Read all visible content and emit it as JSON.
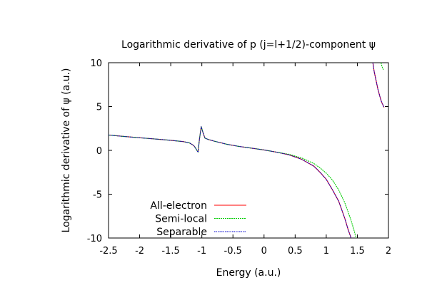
{
  "chart_data": {
    "type": "line",
    "title": "Logarithmic derivative of p (j=l+1/2)-component ψ",
    "xlabel": "Energy (a.u.)",
    "ylabel": "Logarithmic derivative of ψ (a.u.)",
    "xlim": [
      -2.5,
      2
    ],
    "ylim": [
      -10,
      10
    ],
    "x_ticks": [
      "-2.5",
      "-2",
      "-1.5",
      "-1",
      "-0.5",
      "0",
      "0.5",
      "1",
      "1.5",
      "2"
    ],
    "y_ticks": [
      "10",
      "5",
      "0",
      "-5",
      "-10"
    ],
    "grid": false,
    "legend_position": "bottom-left",
    "series": [
      {
        "name": "All-electron",
        "color": "#ff0000",
        "segments": [
          [
            [
              -2.5,
              1.75
            ],
            [
              -2.3,
              1.62
            ],
            [
              -2.1,
              1.5
            ],
            [
              -1.9,
              1.38
            ],
            [
              -1.7,
              1.27
            ],
            [
              -1.5,
              1.15
            ],
            [
              -1.3,
              1.0
            ],
            [
              -1.2,
              0.85
            ],
            [
              -1.13,
              0.55
            ],
            [
              -1.1,
              0.25
            ],
            [
              -1.08,
              0.0
            ],
            [
              -1.06,
              -0.2
            ],
            [
              -1.04,
              1.2
            ],
            [
              -1.01,
              2.7
            ],
            [
              -0.98,
              2.0
            ],
            [
              -0.95,
              1.4
            ],
            [
              -0.9,
              1.25
            ],
            [
              -0.8,
              1.05
            ],
            [
              -0.6,
              0.7
            ],
            [
              -0.4,
              0.45
            ],
            [
              -0.2,
              0.25
            ],
            [
              0.0,
              0.05
            ],
            [
              0.2,
              -0.2
            ],
            [
              0.4,
              -0.5
            ],
            [
              0.6,
              -1.0
            ],
            [
              0.8,
              -1.8
            ],
            [
              0.9,
              -2.5
            ],
            [
              1.0,
              -3.3
            ],
            [
              1.1,
              -4.5
            ],
            [
              1.2,
              -5.8
            ],
            [
              1.25,
              -6.8
            ],
            [
              1.3,
              -7.8
            ],
            [
              1.35,
              -9.0
            ],
            [
              1.4,
              -10.0
            ]
          ],
          [
            [
              1.75,
              10.0
            ],
            [
              1.77,
              9.0
            ],
            [
              1.8,
              8.0
            ],
            [
              1.83,
              7.0
            ],
            [
              1.86,
              6.2
            ],
            [
              1.89,
              5.5
            ],
            [
              1.93,
              4.9
            ]
          ]
        ]
      },
      {
        "name": "Semi-local",
        "color": "#00cc00",
        "segments": [
          [
            [
              -2.5,
              1.75
            ],
            [
              -2.3,
              1.62
            ],
            [
              -2.1,
              1.5
            ],
            [
              -1.9,
              1.38
            ],
            [
              -1.7,
              1.27
            ],
            [
              -1.5,
              1.15
            ],
            [
              -1.3,
              1.0
            ],
            [
              -1.2,
              0.85
            ],
            [
              -1.13,
              0.55
            ],
            [
              -1.1,
              0.25
            ],
            [
              -1.08,
              0.0
            ],
            [
              -1.06,
              -0.2
            ],
            [
              -1.04,
              1.2
            ],
            [
              -1.01,
              2.7
            ],
            [
              -0.98,
              2.0
            ],
            [
              -0.95,
              1.4
            ],
            [
              -0.9,
              1.25
            ],
            [
              -0.8,
              1.05
            ],
            [
              -0.6,
              0.7
            ],
            [
              -0.4,
              0.45
            ],
            [
              -0.2,
              0.25
            ],
            [
              0.0,
              0.05
            ],
            [
              0.2,
              -0.2
            ],
            [
              0.4,
              -0.45
            ],
            [
              0.6,
              -0.85
            ],
            [
              0.8,
              -1.5
            ],
            [
              0.9,
              -2.0
            ],
            [
              1.0,
              -2.6
            ],
            [
              1.1,
              -3.4
            ],
            [
              1.2,
              -4.5
            ],
            [
              1.3,
              -6.0
            ],
            [
              1.35,
              -7.0
            ],
            [
              1.4,
              -8.0
            ],
            [
              1.45,
              -9.2
            ],
            [
              1.48,
              -10.0
            ]
          ],
          [
            [
              1.88,
              10.0
            ],
            [
              1.9,
              9.5
            ],
            [
              1.92,
              9.2
            ]
          ]
        ]
      },
      {
        "name": "Separable",
        "color": "#0000cc",
        "segments": [
          [
            [
              -2.5,
              1.75
            ],
            [
              -2.3,
              1.62
            ],
            [
              -2.1,
              1.5
            ],
            [
              -1.9,
              1.38
            ],
            [
              -1.7,
              1.27
            ],
            [
              -1.5,
              1.15
            ],
            [
              -1.3,
              1.0
            ],
            [
              -1.2,
              0.85
            ],
            [
              -1.13,
              0.55
            ],
            [
              -1.1,
              0.25
            ],
            [
              -1.08,
              0.0
            ],
            [
              -1.06,
              -0.2
            ],
            [
              -1.04,
              1.2
            ],
            [
              -1.01,
              2.7
            ],
            [
              -0.98,
              2.0
            ],
            [
              -0.95,
              1.4
            ],
            [
              -0.9,
              1.25
            ],
            [
              -0.8,
              1.05
            ],
            [
              -0.6,
              0.7
            ],
            [
              -0.4,
              0.45
            ],
            [
              -0.2,
              0.25
            ],
            [
              0.0,
              0.05
            ],
            [
              0.2,
              -0.2
            ],
            [
              0.4,
              -0.5
            ],
            [
              0.6,
              -1.0
            ],
            [
              0.8,
              -1.8
            ],
            [
              0.9,
              -2.5
            ],
            [
              1.0,
              -3.3
            ],
            [
              1.1,
              -4.5
            ],
            [
              1.2,
              -5.8
            ],
            [
              1.25,
              -6.8
            ],
            [
              1.3,
              -7.8
            ],
            [
              1.35,
              -9.0
            ],
            [
              1.4,
              -10.0
            ]
          ],
          [
            [
              1.75,
              10.0
            ],
            [
              1.77,
              9.0
            ],
            [
              1.8,
              8.0
            ],
            [
              1.83,
              7.0
            ],
            [
              1.86,
              6.2
            ],
            [
              1.89,
              5.5
            ],
            [
              1.93,
              4.9
            ]
          ]
        ]
      }
    ]
  }
}
